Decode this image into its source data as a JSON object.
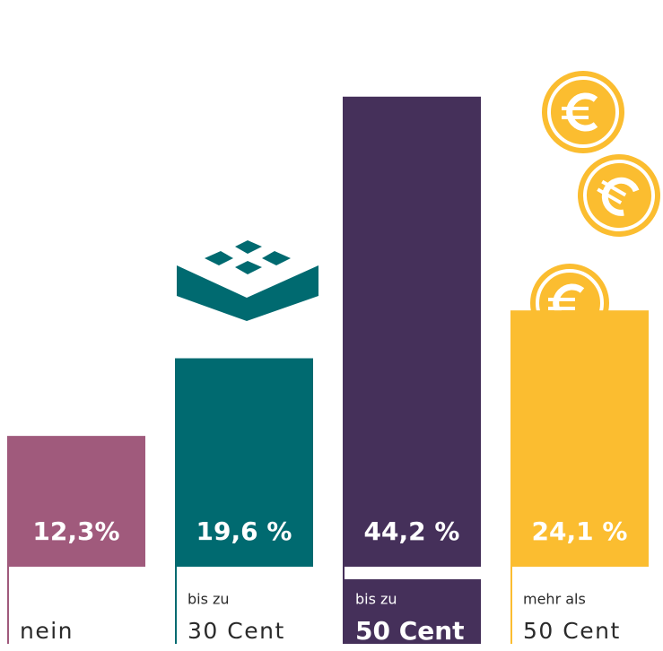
{
  "chart_data": {
    "type": "bar",
    "categories": [
      "nein",
      "30 Cent",
      "50 Cent",
      "50 Cent"
    ],
    "category_notes": [
      null,
      "bis zu",
      "bis zu",
      "mehr als"
    ],
    "values": [
      12.3,
      19.6,
      44.2,
      24.1
    ],
    "value_labels": [
      "12,3%",
      "19,6 %",
      "44,2 %",
      "24,1 %"
    ],
    "colors": [
      "#a05a7c",
      "#006a70",
      "#45305a",
      "#fbbd30"
    ],
    "highlight": 2,
    "ylim": [
      0,
      50
    ]
  }
}
